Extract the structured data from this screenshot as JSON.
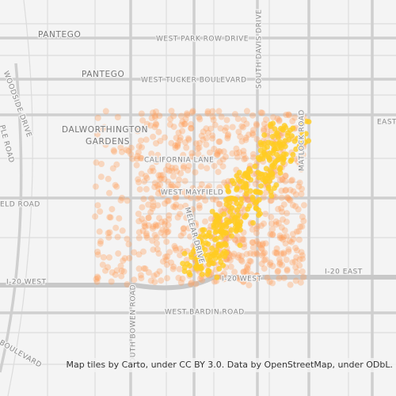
{
  "labels": [
    "PANTEGO",
    "WEST PARK ROW DRIVE",
    "PANTEGO",
    "WEST TUCKER BOULEVARD",
    "SOUTH DAVIS DRIVE",
    "DALWORTHINGTON",
    "GARDENS",
    "CALIFORNIA LANE",
    "WEST MAYFIELD",
    "MATLOCK ROAD",
    "WOODSIDE DRIVE",
    "ELD ROAD",
    "EAST",
    "MELEAR DRIVE",
    "I-20 WEST",
    "I-20 WEST",
    "I-20 EAST",
    "SOUTH BOWEN ROAD",
    "WEST BARDIN ROAD",
    "BOULEVARD",
    "PLE ROAD"
  ],
  "attribution": "Map tiles by Carto, under CC BY 3.0. Data by OpenStreetMap, under ODbL."
}
